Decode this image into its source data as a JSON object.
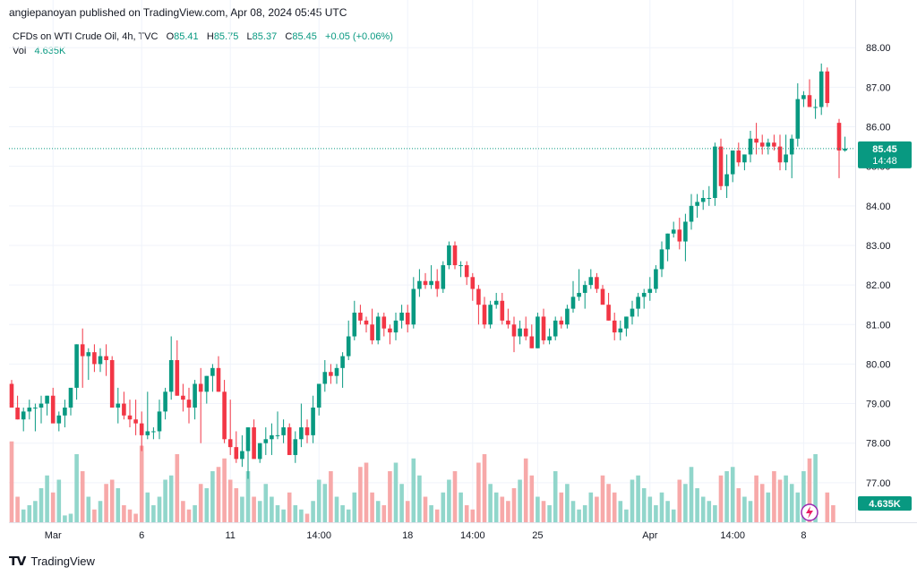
{
  "header": {
    "publish_text": "angiepanoyan published on TradingView.com, Apr 08, 2024 05:45 UTC"
  },
  "legend": {
    "symbol": "CFDs on WTI Crude Oil, 4h, TVC",
    "open_label": "O",
    "open": "85.41",
    "high_label": "H",
    "high": "85.75",
    "low_label": "L",
    "low": "85.37",
    "close_label": "C",
    "close": "85.45",
    "change": "+0.05 (+0.06%)",
    "vol_label": "Vol",
    "vol_value": "4.635K"
  },
  "price_tag": {
    "price": "85.45",
    "countdown": "14:48"
  },
  "vol_tag": "4.635K",
  "footer": {
    "brand": "TradingView"
  },
  "colors": {
    "up": "#089981",
    "down": "#f23645",
    "vol_up": "#91d6cb",
    "vol_down": "#f7a9a9"
  },
  "chart_data": {
    "type": "candlestick",
    "ylim": [
      76,
      88.3
    ],
    "y_ticks": [
      "77.00",
      "78.00",
      "79.00",
      "80.00",
      "81.00",
      "82.00",
      "83.00",
      "84.00",
      "85.00",
      "86.00",
      "87.00",
      "88.00"
    ],
    "x_ticks": [
      {
        "label": "Mar",
        "i": 7
      },
      {
        "label": "6",
        "i": 22
      },
      {
        "label": "11",
        "i": 37
      },
      {
        "label": "14:00",
        "i": 52
      },
      {
        "label": "18",
        "i": 67
      },
      {
        "label": "14:00",
        "i": 78
      },
      {
        "label": "25",
        "i": 89
      },
      {
        "label": "Apr",
        "i": 108
      },
      {
        "label": "14:00",
        "i": 122
      },
      {
        "label": "8",
        "i": 134
      }
    ],
    "last_price": 85.45,
    "candles": [
      [
        79.5,
        79.6,
        78.9,
        78.9
      ],
      [
        78.9,
        79.2,
        78.6,
        78.6
      ],
      [
        78.6,
        78.9,
        78.3,
        78.8
      ],
      [
        78.8,
        79.1,
        78.6,
        78.9
      ],
      [
        78.9,
        79.0,
        78.3,
        78.9
      ],
      [
        78.9,
        79.2,
        78.5,
        79.0
      ],
      [
        79.0,
        79.2,
        78.7,
        79.2
      ],
      [
        79.2,
        79.4,
        78.6,
        78.5
      ],
      [
        78.5,
        78.8,
        78.3,
        78.7
      ],
      [
        78.7,
        79.1,
        78.4,
        78.9
      ],
      [
        78.9,
        79.3,
        78.7,
        79.4
      ],
      [
        79.4,
        80.5,
        79.1,
        80.5
      ],
      [
        80.5,
        80.9,
        79.4,
        80.2
      ],
      [
        80.2,
        80.4,
        79.6,
        80.3
      ],
      [
        80.3,
        80.5,
        79.8,
        80.0
      ],
      [
        80.0,
        80.4,
        79.8,
        80.2
      ],
      [
        80.2,
        80.5,
        79.7,
        80.1
      ],
      [
        80.1,
        80.2,
        78.9,
        78.9
      ],
      [
        78.9,
        79.4,
        78.5,
        79.0
      ],
      [
        79.0,
        79.3,
        78.6,
        78.7
      ],
      [
        78.7,
        79.1,
        78.4,
        78.6
      ],
      [
        78.6,
        79.1,
        78.2,
        78.5
      ],
      [
        78.5,
        78.8,
        77.8,
        78.2
      ],
      [
        78.2,
        79.3,
        78.1,
        78.3
      ],
      [
        78.3,
        78.4,
        78.1,
        78.3
      ],
      [
        78.3,
        79.1,
        78.1,
        78.8
      ],
      [
        78.8,
        79.4,
        78.6,
        79.3
      ],
      [
        79.3,
        80.7,
        79.1,
        80.1
      ],
      [
        80.1,
        80.6,
        79.2,
        79.2
      ],
      [
        79.2,
        79.5,
        78.8,
        79.1
      ],
      [
        79.1,
        79.4,
        78.5,
        78.9
      ],
      [
        78.9,
        79.6,
        78.6,
        79.5
      ],
      [
        79.5,
        79.9,
        78.0,
        79.3
      ],
      [
        79.3,
        79.7,
        79.0,
        79.7
      ],
      [
        79.7,
        80.0,
        79.3,
        79.9
      ],
      [
        79.9,
        80.2,
        79.3,
        79.3
      ],
      [
        79.3,
        79.6,
        78.0,
        78.1
      ],
      [
        78.1,
        79.1,
        77.7,
        77.9
      ],
      [
        77.9,
        78.3,
        77.5,
        77.6
      ],
      [
        77.6,
        78.2,
        77.4,
        77.8
      ],
      [
        77.8,
        78.4,
        77.1,
        78.4
      ],
      [
        78.4,
        78.6,
        77.7,
        77.6
      ],
      [
        77.6,
        78.0,
        77.5,
        78.0
      ],
      [
        78.0,
        78.4,
        77.7,
        78.1
      ],
      [
        78.1,
        78.5,
        77.7,
        78.2
      ],
      [
        78.2,
        78.8,
        78.1,
        78.2
      ],
      [
        78.2,
        78.6,
        78.0,
        78.4
      ],
      [
        78.4,
        78.5,
        77.7,
        77.7
      ],
      [
        77.7,
        78.3,
        77.5,
        78.1
      ],
      [
        78.1,
        79.0,
        77.9,
        78.4
      ],
      [
        78.4,
        78.6,
        78.0,
        78.2
      ],
      [
        78.2,
        79.2,
        78.0,
        78.9
      ],
      [
        78.9,
        79.5,
        78.7,
        79.5
      ],
      [
        79.5,
        80.1,
        79.3,
        79.8
      ],
      [
        79.8,
        80.0,
        79.5,
        79.7
      ],
      [
        79.7,
        80.0,
        79.5,
        79.9
      ],
      [
        79.9,
        80.3,
        79.4,
        80.2
      ],
      [
        80.2,
        81.1,
        80.1,
        80.7
      ],
      [
        80.7,
        81.6,
        80.6,
        81.3
      ],
      [
        81.3,
        81.5,
        81.0,
        81.1
      ],
      [
        81.1,
        81.2,
        80.8,
        81.0
      ],
      [
        81.0,
        81.4,
        80.5,
        80.6
      ],
      [
        80.6,
        81.3,
        80.5,
        81.2
      ],
      [
        81.2,
        81.3,
        80.7,
        80.9
      ],
      [
        80.9,
        81.0,
        80.5,
        80.8
      ],
      [
        80.8,
        81.3,
        80.6,
        81.1
      ],
      [
        81.1,
        81.5,
        80.9,
        81.3
      ],
      [
        81.3,
        81.5,
        80.8,
        81.0
      ],
      [
        81.0,
        82.2,
        80.9,
        81.9
      ],
      [
        81.9,
        82.4,
        81.7,
        82.1
      ],
      [
        82.1,
        82.3,
        81.9,
        82.0
      ],
      [
        82.0,
        82.5,
        81.9,
        82.1
      ],
      [
        82.1,
        82.4,
        81.7,
        81.9
      ],
      [
        81.9,
        82.6,
        81.8,
        82.5
      ],
      [
        82.5,
        83.1,
        82.4,
        83.0
      ],
      [
        83.0,
        83.1,
        82.4,
        82.5
      ],
      [
        82.5,
        82.6,
        82.2,
        82.5
      ],
      [
        82.5,
        82.6,
        82.0,
        82.2
      ],
      [
        82.2,
        82.3,
        81.6,
        81.9
      ],
      [
        81.9,
        82.0,
        81.0,
        81.5
      ],
      [
        81.5,
        81.7,
        80.9,
        81.0
      ],
      [
        81.0,
        81.6,
        80.9,
        81.5
      ],
      [
        81.5,
        81.8,
        81.4,
        81.6
      ],
      [
        81.6,
        81.8,
        81.0,
        81.1
      ],
      [
        81.1,
        81.4,
        80.9,
        81.0
      ],
      [
        81.0,
        81.2,
        80.3,
        80.7
      ],
      [
        80.7,
        81.1,
        80.5,
        80.9
      ],
      [
        80.9,
        81.2,
        80.6,
        80.7
      ],
      [
        80.7,
        81.0,
        80.4,
        80.4
      ],
      [
        80.4,
        81.3,
        80.4,
        81.2
      ],
      [
        81.2,
        81.4,
        80.5,
        80.6
      ],
      [
        80.6,
        80.9,
        80.5,
        80.7
      ],
      [
        80.7,
        81.2,
        80.6,
        81.1
      ],
      [
        81.1,
        81.2,
        80.9,
        81.0
      ],
      [
        81.0,
        81.5,
        80.9,
        81.4
      ],
      [
        81.4,
        82.1,
        81.3,
        81.7
      ],
      [
        81.7,
        82.4,
        81.6,
        81.8
      ],
      [
        81.8,
        82.1,
        81.4,
        82.0
      ],
      [
        82.0,
        82.4,
        81.9,
        82.2
      ],
      [
        82.2,
        82.3,
        81.8,
        81.9
      ],
      [
        81.9,
        82.0,
        81.6,
        81.5
      ],
      [
        81.5,
        81.8,
        81.1,
        81.1
      ],
      [
        81.1,
        81.3,
        80.6,
        80.8
      ],
      [
        80.8,
        81.1,
        80.6,
        80.9
      ],
      [
        80.9,
        81.2,
        80.7,
        81.2
      ],
      [
        81.2,
        81.6,
        81.0,
        81.4
      ],
      [
        81.4,
        81.8,
        81.2,
        81.7
      ],
      [
        81.7,
        81.9,
        81.4,
        81.8
      ],
      [
        81.8,
        82.2,
        81.6,
        81.9
      ],
      [
        81.9,
        82.5,
        81.8,
        82.4
      ],
      [
        82.4,
        83.1,
        82.2,
        82.9
      ],
      [
        82.9,
        83.3,
        82.6,
        83.3
      ],
      [
        83.3,
        83.6,
        83.2,
        83.4
      ],
      [
        83.4,
        83.7,
        82.9,
        83.1
      ],
      [
        83.1,
        83.8,
        82.6,
        83.6
      ],
      [
        83.6,
        84.3,
        83.4,
        84.0
      ],
      [
        84.0,
        84.3,
        83.7,
        84.1
      ],
      [
        84.1,
        84.4,
        83.9,
        84.2
      ],
      [
        84.2,
        84.5,
        84.0,
        84.2
      ],
      [
        84.2,
        85.6,
        84.0,
        85.5
      ],
      [
        85.5,
        85.7,
        84.4,
        84.5
      ],
      [
        84.5,
        85.3,
        84.2,
        84.8
      ],
      [
        84.8,
        85.4,
        84.6,
        85.4
      ],
      [
        85.4,
        85.6,
        85.0,
        85.1
      ],
      [
        85.1,
        85.3,
        84.9,
        85.3
      ],
      [
        85.3,
        85.9,
        85.1,
        85.7
      ],
      [
        85.7,
        86.1,
        85.3,
        85.6
      ],
      [
        85.6,
        85.8,
        85.3,
        85.5
      ],
      [
        85.5,
        85.7,
        85.3,
        85.6
      ],
      [
        85.6,
        85.8,
        85.4,
        85.5
      ],
      [
        85.5,
        85.8,
        84.9,
        85.1
      ],
      [
        85.1,
        85.8,
        84.9,
        85.3
      ],
      [
        85.3,
        85.8,
        84.7,
        85.7
      ],
      [
        85.7,
        87.1,
        85.5,
        86.7
      ],
      [
        86.7,
        86.9,
        86.5,
        86.8
      ],
      [
        86.8,
        87.2,
        86.5,
        86.5
      ],
      [
        86.5,
        86.7,
        86.2,
        86.5
      ],
      [
        86.5,
        87.6,
        86.3,
        87.4
      ],
      [
        87.4,
        87.5,
        86.5,
        86.6
      ],
      [
        null,
        null,
        null,
        null
      ],
      [
        86.1,
        86.2,
        84.7,
        85.4
      ],
      [
        85.4,
        85.75,
        85.37,
        85.45
      ]
    ],
    "volume": [
      0.95,
      0.3,
      0.15,
      0.2,
      0.25,
      0.4,
      0.55,
      0.35,
      0.5,
      0.08,
      0.1,
      0.8,
      0.6,
      0.3,
      0.15,
      0.25,
      0.45,
      0.5,
      0.4,
      0.2,
      0.15,
      0.1,
      0.9,
      0.35,
      0.2,
      0.3,
      0.5,
      0.55,
      0.8,
      0.25,
      0.15,
      0.2,
      0.45,
      0.4,
      0.6,
      0.65,
      0.75,
      0.5,
      0.4,
      0.3,
      0.6,
      0.3,
      0.25,
      0.45,
      0.3,
      0.2,
      0.15,
      0.35,
      0.2,
      0.15,
      0.1,
      0.25,
      0.5,
      0.45,
      0.6,
      0.3,
      0.2,
      0.15,
      0.35,
      0.65,
      0.7,
      0.35,
      0.25,
      0.2,
      0.6,
      0.7,
      0.45,
      0.25,
      0.75,
      0.55,
      0.3,
      0.2,
      0.15,
      0.35,
      0.5,
      0.6,
      0.35,
      0.2,
      0.15,
      0.7,
      0.8,
      0.45,
      0.35,
      0.3,
      0.25,
      0.4,
      0.5,
      0.75,
      0.55,
      0.3,
      0.25,
      0.2,
      0.6,
      0.35,
      0.45,
      0.25,
      0.15,
      0.2,
      0.35,
      0.3,
      0.55,
      0.45,
      0.35,
      0.25,
      0.15,
      0.5,
      0.55,
      0.4,
      0.3,
      0.2,
      0.35,
      0.25,
      0.15,
      0.5,
      0.45,
      0.65,
      0.4,
      0.3,
      0.25,
      0.2,
      0.55,
      0.6,
      0.65,
      0.4,
      0.3,
      0.25,
      0.55,
      0.45,
      0.35,
      0.6,
      0.5,
      0.55,
      0.45,
      0.35,
      0.6,
      0.75,
      0.8,
      0.0,
      0.35,
      0.2
    ]
  }
}
